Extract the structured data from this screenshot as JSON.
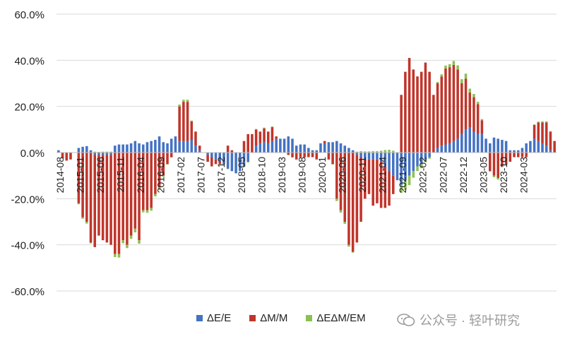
{
  "chart_data": {
    "type": "bar",
    "stacked": true,
    "y_axis": {
      "min": -0.6,
      "max": 0.6,
      "ticks": [
        "60.0%",
        "40.0%",
        "20.0%",
        "0.0%",
        "-20.0%",
        "-40.0%",
        "-60.0%"
      ]
    },
    "x_tick_labels": [
      "2014-08",
      "2015-01",
      "2015-06",
      "2015-11",
      "2016-04",
      "2016-09",
      "2017-02",
      "2017-07",
      "2017-12",
      "2018-05",
      "2018-10",
      "2019-03",
      "2019-08",
      "2020-01",
      "2020-06",
      "2020-11",
      "2021-04",
      "2021-09",
      "2022-02",
      "2022-07",
      "2022-12",
      "2023-05",
      "2023-10",
      "2024-03"
    ],
    "months_start": "2014-08",
    "grid": true,
    "legend_position": "bottom",
    "series": [
      {
        "name": "ΔE/E",
        "color": "#4472C4",
        "values": [
          0.01,
          0.0,
          0.0,
          0.0,
          0.0,
          0.02,
          0.025,
          0.028,
          0.01,
          -0.01,
          -0.01,
          -0.01,
          -0.01,
          -0.01,
          0.03,
          0.035,
          0.035,
          0.035,
          0.04,
          0.05,
          0.04,
          0.035,
          0.045,
          0.05,
          0.055,
          0.07,
          0.045,
          0.04,
          0.06,
          0.07,
          0.05,
          0.05,
          0.05,
          0.055,
          0.03,
          0.01,
          0.0,
          -0.01,
          -0.02,
          -0.03,
          -0.04,
          -0.05,
          -0.07,
          -0.08,
          -0.09,
          -0.08,
          -0.06,
          -0.04,
          0.0,
          0.03,
          0.04,
          0.045,
          0.04,
          0.05,
          0.06,
          0.06,
          0.06,
          0.07,
          0.06,
          0.03,
          0.035,
          0.035,
          0.02,
          0.01,
          0.01,
          0.04,
          0.04,
          0.045,
          0.045,
          0.05,
          0.04,
          0.03,
          0.02,
          0.01,
          -0.01,
          -0.02,
          -0.03,
          -0.03,
          -0.03,
          -0.03,
          -0.04,
          -0.06,
          -0.08,
          -0.1,
          -0.12,
          -0.14,
          -0.12,
          -0.1,
          -0.08,
          -0.06,
          -0.05,
          -0.03,
          -0.02,
          0.0,
          0.02,
          0.03,
          0.035,
          0.04,
          0.05,
          0.06,
          0.08,
          0.1,
          0.11,
          0.09,
          0.08,
          0.08,
          0.06,
          0.04,
          0.065,
          0.06,
          0.055,
          0.05,
          0.01,
          0.01,
          0.01,
          0.02,
          0.04,
          0.05,
          0.06,
          0.05,
          0.04,
          0.03,
          0.01,
          0.0
        ]
      },
      {
        "name": "ΔM/M",
        "color": "#C0352B",
        "values": [
          0.0,
          -0.025,
          -0.035,
          -0.03,
          0.0,
          -0.22,
          -0.28,
          -0.3,
          -0.39,
          -0.4,
          -0.35,
          -0.37,
          -0.38,
          -0.39,
          -0.44,
          -0.44,
          -0.38,
          -0.4,
          -0.36,
          -0.33,
          -0.38,
          -0.25,
          -0.25,
          -0.24,
          -0.18,
          -0.15,
          -0.1,
          -0.05,
          -0.02,
          0.0,
          0.15,
          0.17,
          0.17,
          0.08,
          0.06,
          0.02,
          0.0,
          -0.03,
          -0.04,
          -0.02,
          -0.01,
          0.0,
          0.03,
          0.01,
          0.0,
          0.0,
          0.05,
          0.08,
          0.08,
          0.07,
          0.05,
          0.06,
          0.05,
          0.06,
          0.01,
          0.0,
          0.0,
          -0.01,
          -0.02,
          -0.03,
          -0.02,
          -0.02,
          -0.02,
          -0.02,
          -0.03,
          0.0,
          0.01,
          -0.03,
          -0.05,
          -0.2,
          -0.25,
          -0.3,
          -0.4,
          -0.43,
          -0.38,
          -0.28,
          -0.17,
          -0.15,
          -0.2,
          -0.19,
          -0.2,
          -0.18,
          -0.15,
          -0.08,
          0.0,
          0.25,
          0.35,
          0.41,
          0.36,
          0.33,
          0.35,
          0.39,
          0.35,
          0.25,
          0.28,
          0.3,
          0.33,
          0.33,
          0.33,
          0.3,
          0.22,
          0.22,
          0.15,
          0.15,
          0.13,
          0.06,
          0.0,
          -0.08,
          -0.1,
          -0.11,
          -0.06,
          -0.05,
          -0.04,
          -0.02,
          -0.02,
          -0.02,
          -0.02,
          0.0,
          0.06,
          0.08,
          0.09,
          0.1,
          0.08,
          0.05
        ]
      },
      {
        "name": "ΔEΔM/EM",
        "color": "#8CC152",
        "values": [
          0.0,
          0.0,
          0.0,
          0.0,
          0.0,
          -0.004,
          -0.007,
          -0.008,
          -0.004,
          0.004,
          0.003,
          0.004,
          0.004,
          0.004,
          -0.013,
          -0.015,
          -0.013,
          -0.014,
          -0.014,
          -0.016,
          -0.015,
          -0.009,
          -0.011,
          -0.012,
          -0.01,
          -0.011,
          -0.005,
          -0.002,
          -0.001,
          0.0,
          0.008,
          0.009,
          0.009,
          0.004,
          0.002,
          0.0,
          0.0,
          0.0,
          0.001,
          0.001,
          0.0,
          0.0,
          -0.002,
          -0.001,
          0.0,
          0.0,
          -0.003,
          -0.003,
          0.0,
          0.002,
          0.002,
          0.003,
          0.002,
          0.003,
          0.001,
          0.0,
          0.0,
          -0.001,
          -0.001,
          -0.001,
          -0.001,
          -0.001,
          0.0,
          0.0,
          0.0,
          0.0,
          0.0,
          -0.001,
          -0.002,
          -0.01,
          -0.01,
          -0.009,
          -0.008,
          -0.004,
          0.004,
          0.006,
          0.005,
          0.005,
          0.006,
          0.006,
          0.008,
          0.011,
          0.012,
          0.008,
          0.0,
          -0.035,
          -0.042,
          -0.041,
          -0.029,
          -0.02,
          -0.018,
          -0.012,
          -0.007,
          0.0,
          0.006,
          0.009,
          0.012,
          0.013,
          0.017,
          0.018,
          0.018,
          0.022,
          0.017,
          0.014,
          0.01,
          0.005,
          0.0,
          -0.003,
          -0.007,
          -0.007,
          -0.003,
          -0.003,
          0.0,
          0.0,
          0.0,
          0.0,
          0.0,
          0.0,
          0.002,
          0.004,
          0.005,
          0.005,
          0.003,
          0.0
        ]
      }
    ]
  },
  "watermark": {
    "text": "公众号 · 轻叶研究"
  }
}
